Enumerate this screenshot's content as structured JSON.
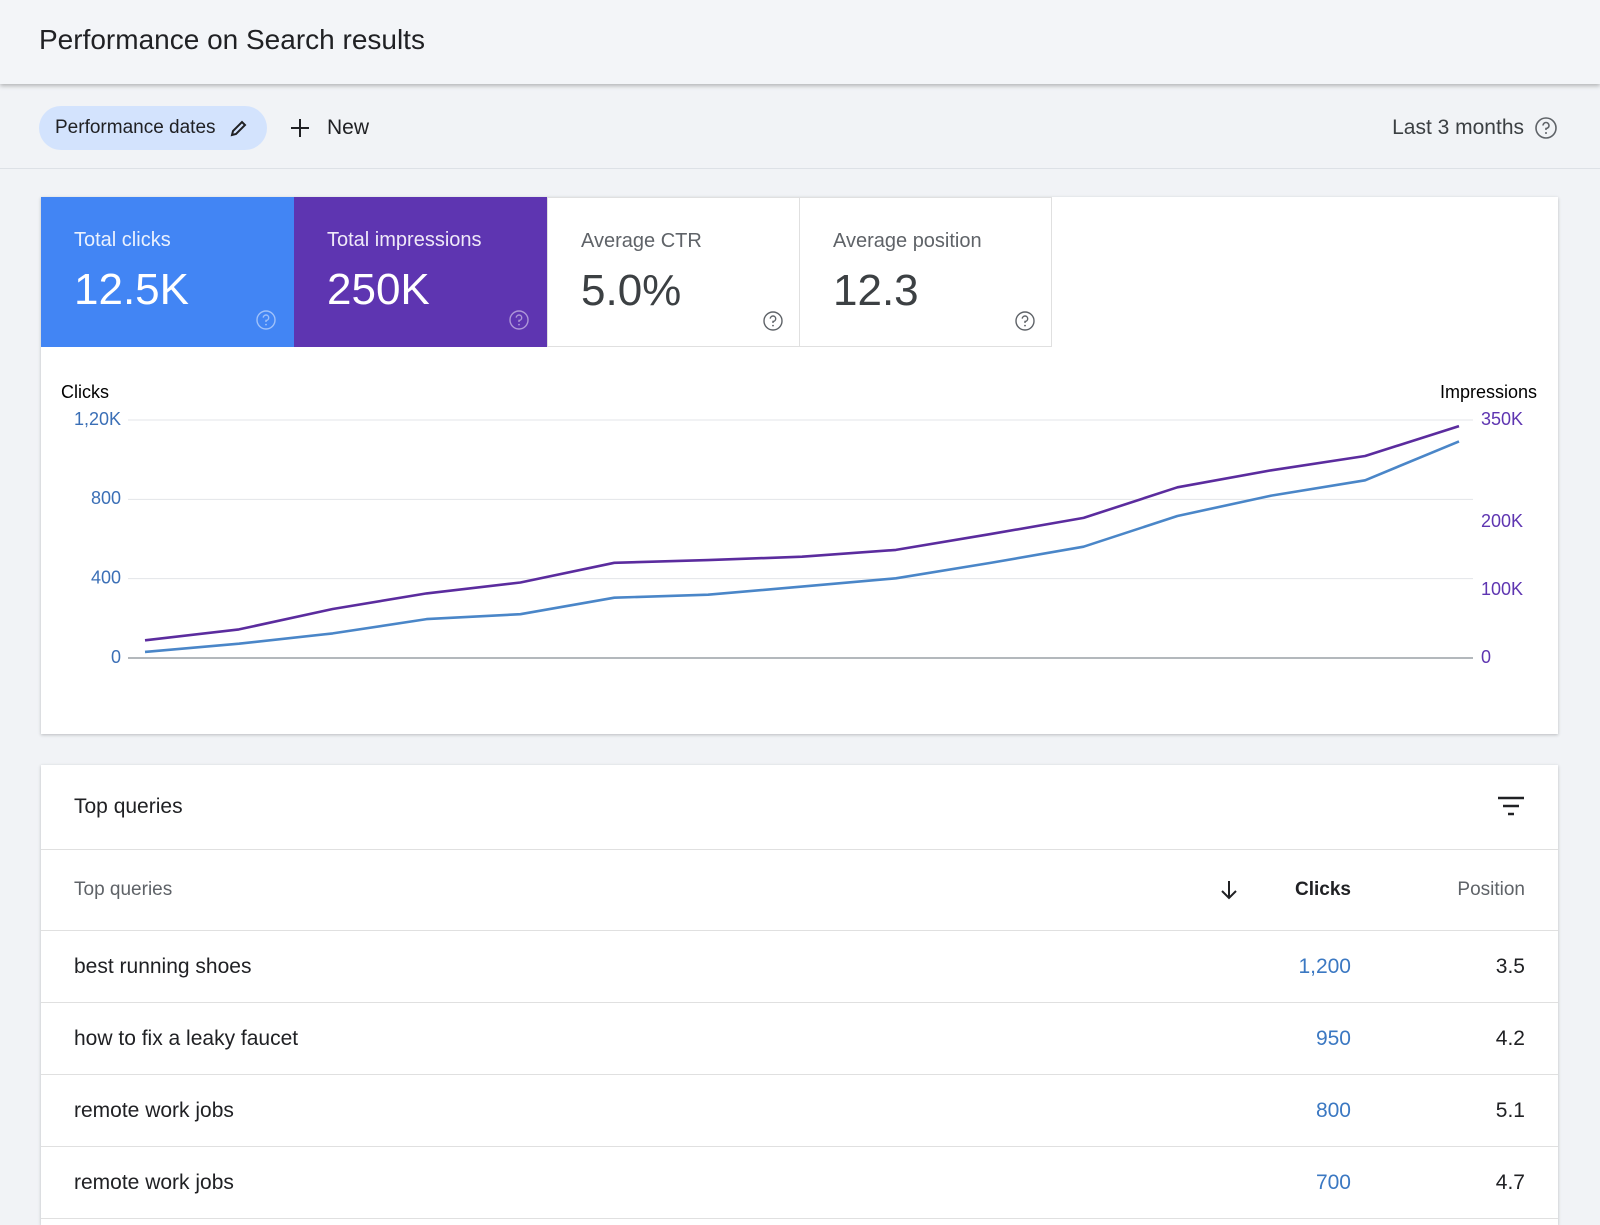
{
  "header": {
    "title": "Performance on Search results"
  },
  "toolbar": {
    "filter_chip": "Performance dates",
    "new_button": "New",
    "date_range": "Last 3 months"
  },
  "metrics": [
    {
      "label": "Total clicks",
      "value": "12.5K"
    },
    {
      "label": "Total impressions",
      "value": "250K"
    },
    {
      "label": "Average CTR",
      "value": "5.0%"
    },
    {
      "label": "Average position",
      "value": "12.3"
    }
  ],
  "chart_data": {
    "type": "line",
    "ylabel": "Clicks",
    "y2label": "Impressions",
    "categories": [
      null,
      null,
      null,
      null,
      null,
      null,
      null,
      null,
      null,
      null,
      null,
      null,
      null,
      null,
      null
    ],
    "series": [
      {
        "color": "#4a86c8",
        "values": [
          31,
          72,
          124,
          196,
          221,
          304,
          319,
          360,
          402,
          479,
          561,
          716,
          819,
          896,
          1092
        ]
      },
      {
        "color": "#5b2c9e",
        "axis": "y2",
        "values": [
          26000,
          42000,
          72000,
          95000,
          111000,
          140000,
          144000,
          149000,
          159000,
          182000,
          206000,
          251000,
          276000,
          297000,
          341000
        ]
      }
    ],
    "ylim": [
      0,
      1200
    ],
    "yticks": [
      0,
      400,
      800,
      {
        "value": 1200,
        "label": "1,20K"
      }
    ],
    "y2lim": [
      0,
      350000
    ],
    "y2ticks": [
      {
        "value": 0,
        "label": "0"
      },
      {
        "value": 100000,
        "label": "100K"
      },
      {
        "value": 200000,
        "label": "200K"
      },
      {
        "value": 350000,
        "label": "350K"
      }
    ],
    "grid": true
  },
  "table": {
    "title": "Top queries",
    "columns": [
      "Top queries",
      "Clicks",
      "Position"
    ],
    "rows": [
      [
        "best running shoes",
        "1,200",
        "3.5"
      ],
      [
        "how to fix a leaky faucet",
        "950",
        "4.2"
      ],
      [
        "remote work jobs",
        "800",
        "5.1"
      ],
      [
        "remote work jobs",
        "700",
        "4.7"
      ]
    ]
  }
}
